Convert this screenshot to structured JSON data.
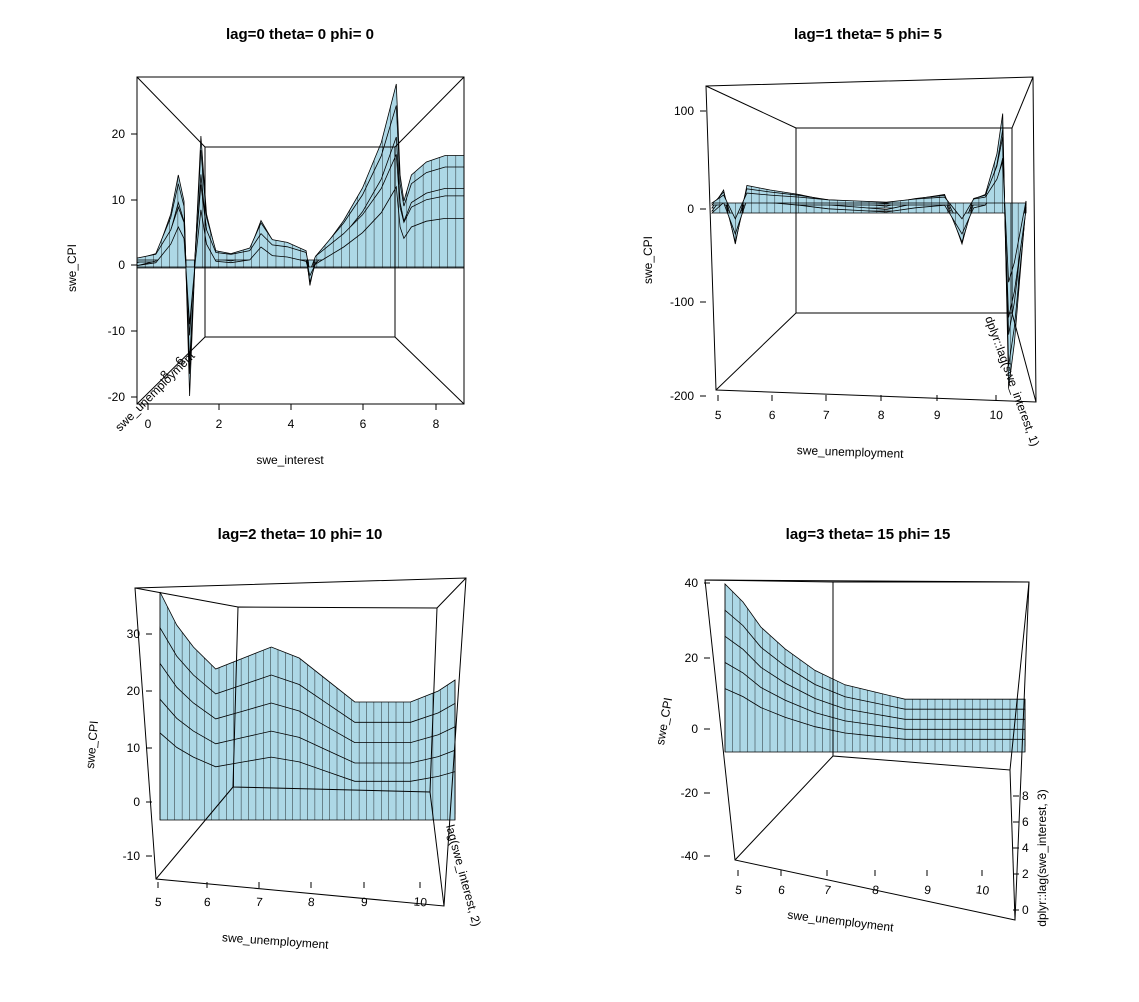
{
  "colors": {
    "surface_fill": "#add8e6",
    "mesh_stroke": "#000000",
    "box_stroke": "#000000",
    "background": "#ffffff"
  },
  "chart_data": [
    {
      "type": "surface",
      "title": "lag=0 theta= 0 phi= 0",
      "xlabel": "swe_interest",
      "ylabel": "swe_CPI",
      "depth_label": "swe_unemployment",
      "x_ticks": [
        "0",
        "2",
        "4",
        "6",
        "8"
      ],
      "y_ticks": [
        "20",
        "10",
        "0",
        "-10",
        "-20"
      ],
      "depth_ticks": [
        "8",
        "6"
      ],
      "xlim": [
        -0.3,
        8.7
      ],
      "ylim": [
        -21,
        28
      ],
      "theta": 0,
      "phi": 0,
      "profile_x": [
        0,
        0.5,
        0.9,
        1.1,
        1.25,
        1.4,
        1.55,
        1.7,
        1.85,
        2.1,
        2.5,
        3.0,
        3.3,
        3.6,
        4.0,
        4.5,
        4.6,
        4.75,
        5.0,
        5.5,
        6.0,
        6.5,
        6.9,
        7.0,
        7.1,
        7.3,
        7.7,
        8.2,
        8.7
      ],
      "profile_y": [
        0.5,
        1.5,
        8,
        14,
        10,
        -20,
        2,
        20,
        8,
        2,
        1.5,
        2.5,
        7,
        4,
        3.5,
        2,
        -3,
        1,
        3,
        7,
        12,
        19,
        28,
        14,
        10,
        14,
        16,
        17,
        17
      ]
    },
    {
      "type": "surface",
      "title": "lag=1 theta= 5 phi= 5",
      "xlabel": "swe_unemployment",
      "ylabel": "swe_CPI",
      "depth_label": "dplyr::lag(swe_interest, 1)",
      "x_ticks": [
        "5",
        "6",
        "7",
        "8",
        "9",
        "10"
      ],
      "y_ticks": [
        "100",
        "0",
        "-100",
        "-200"
      ],
      "xlim": [
        4.8,
        10.5
      ],
      "ylim": [
        -200,
        110
      ],
      "theta": 5,
      "phi": 5,
      "profile_x": [
        5.0,
        5.2,
        5.4,
        5.6,
        6.0,
        6.5,
        7.0,
        7.5,
        8.0,
        8.5,
        9.0,
        9.3,
        9.5,
        9.7,
        9.9,
        10.0,
        10.1,
        10.2,
        10.4
      ],
      "profile_y": [
        0,
        20,
        -40,
        25,
        20,
        15,
        8,
        5,
        2,
        10,
        15,
        -40,
        10,
        15,
        60,
        105,
        -200,
        -150,
        5
      ]
    },
    {
      "type": "surface",
      "title": "lag=2 theta= 10 phi= 10",
      "xlabel": "swe_unemployment",
      "ylabel": "swe_CPI",
      "depth_label": "lag(swe_interest, 2)",
      "x_ticks": [
        "5",
        "6",
        "7",
        "8",
        "9",
        "10"
      ],
      "y_ticks": [
        "30",
        "20",
        "10",
        "0",
        "-10"
      ],
      "xlim": [
        4.9,
        10.6
      ],
      "ylim": [
        -14,
        37
      ],
      "theta": 10,
      "phi": 10,
      "profile_x": [
        5.0,
        5.3,
        5.6,
        6.0,
        6.5,
        7.0,
        7.5,
        8.0,
        8.5,
        9.0,
        9.5,
        10.0,
        10.3
      ],
      "profile_y": [
        36,
        30,
        26,
        22,
        24,
        26,
        24,
        20,
        16,
        16,
        16,
        18,
        20
      ]
    },
    {
      "type": "surface",
      "title": "lag=3 theta= 15 phi= 15",
      "xlabel": "swe_unemployment",
      "ylabel": "swe_CPI",
      "depth_label": "dplyr::lag(swe_interest, 3)",
      "x_ticks": [
        "5",
        "6",
        "7",
        "8",
        "9",
        "10"
      ],
      "y_ticks": [
        "40",
        "20",
        "0",
        "-20",
        "-40"
      ],
      "depth_ticks": [
        "8",
        "6",
        "4",
        "2",
        "0"
      ],
      "xlim": [
        4.7,
        10.4
      ],
      "ylim": [
        -45,
        42
      ],
      "theta": 15,
      "phi": 15,
      "profile_x": [
        5.0,
        5.3,
        5.6,
        6.0,
        6.5,
        7.0,
        7.5,
        8.0,
        8.5,
        9.0,
        9.5,
        10.0
      ],
      "profile_y": [
        40,
        35,
        28,
        22,
        16,
        12,
        10,
        8,
        8,
        8,
        8,
        8
      ]
    }
  ]
}
